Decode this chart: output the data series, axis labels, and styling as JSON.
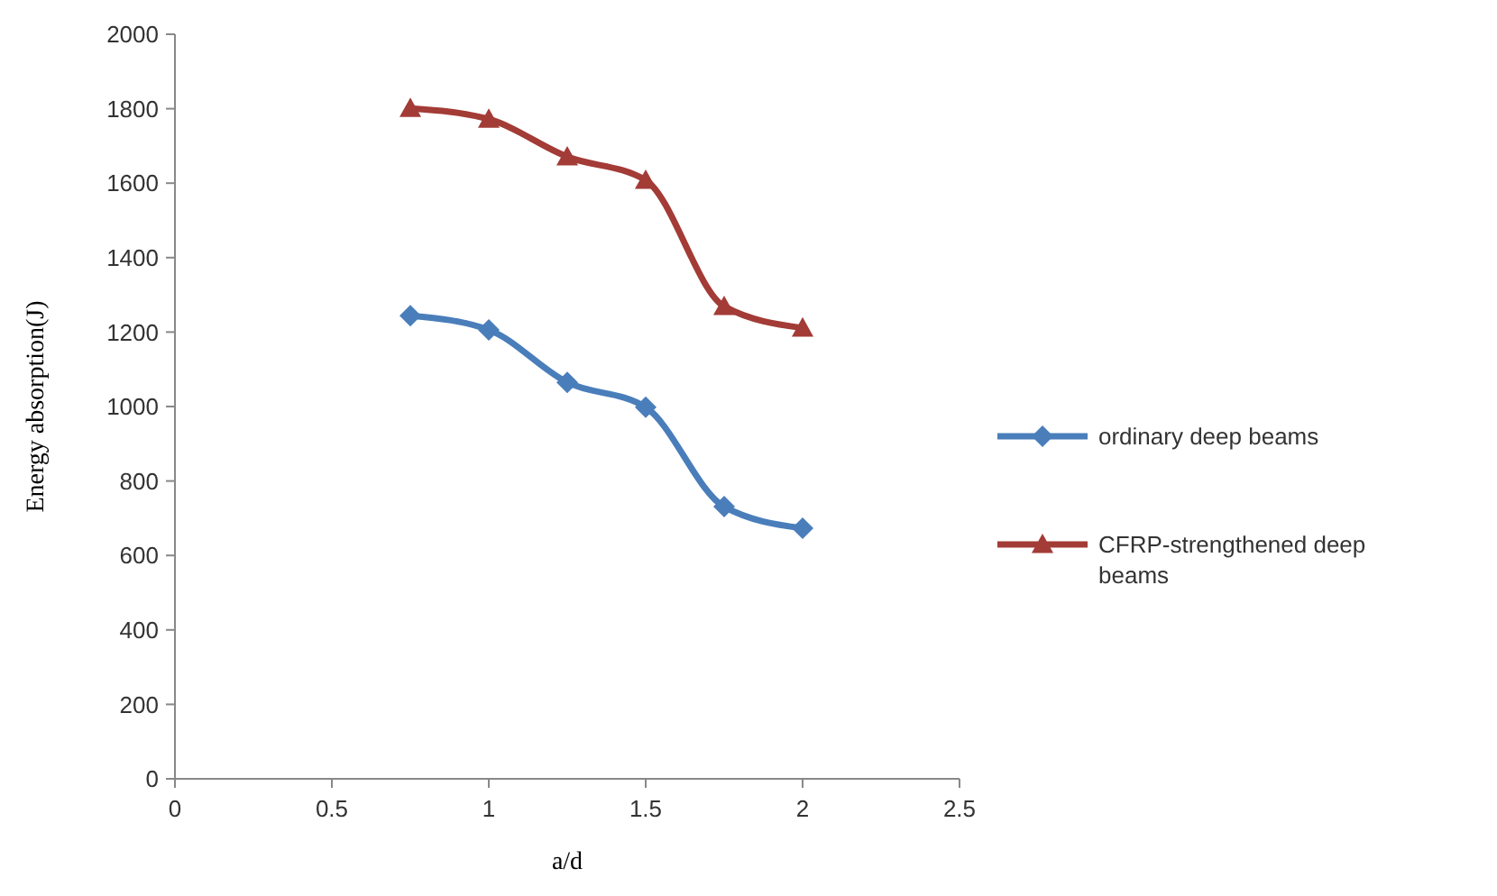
{
  "chart_data": {
    "type": "line",
    "xlabel": "a/d",
    "ylabel": "Energy absorption(J)",
    "x": [
      0.75,
      1,
      1.25,
      1.5,
      1.75,
      2
    ],
    "series": [
      {
        "name": "ordinary deep beams",
        "color": "#4a7ebb",
        "marker": "diamond",
        "values": [
          1244,
          1206,
          1065,
          998,
          731,
          673
        ]
      },
      {
        "name": "CFRP-strengthened deep beams",
        "color": "#a33b36",
        "marker": "triangle",
        "values": [
          1801,
          1772,
          1671,
          1608,
          1269,
          1211
        ]
      }
    ],
    "xlim": [
      0,
      2.5
    ],
    "xticks": [
      0,
      0.5,
      1,
      1.5,
      2,
      2.5
    ],
    "ylim": [
      0,
      2000
    ],
    "yticks": [
      0,
      200,
      400,
      600,
      800,
      1000,
      1200,
      1400,
      1600,
      1800,
      2000
    ],
    "grid": false,
    "legend": "right",
    "line_style": "solid"
  }
}
